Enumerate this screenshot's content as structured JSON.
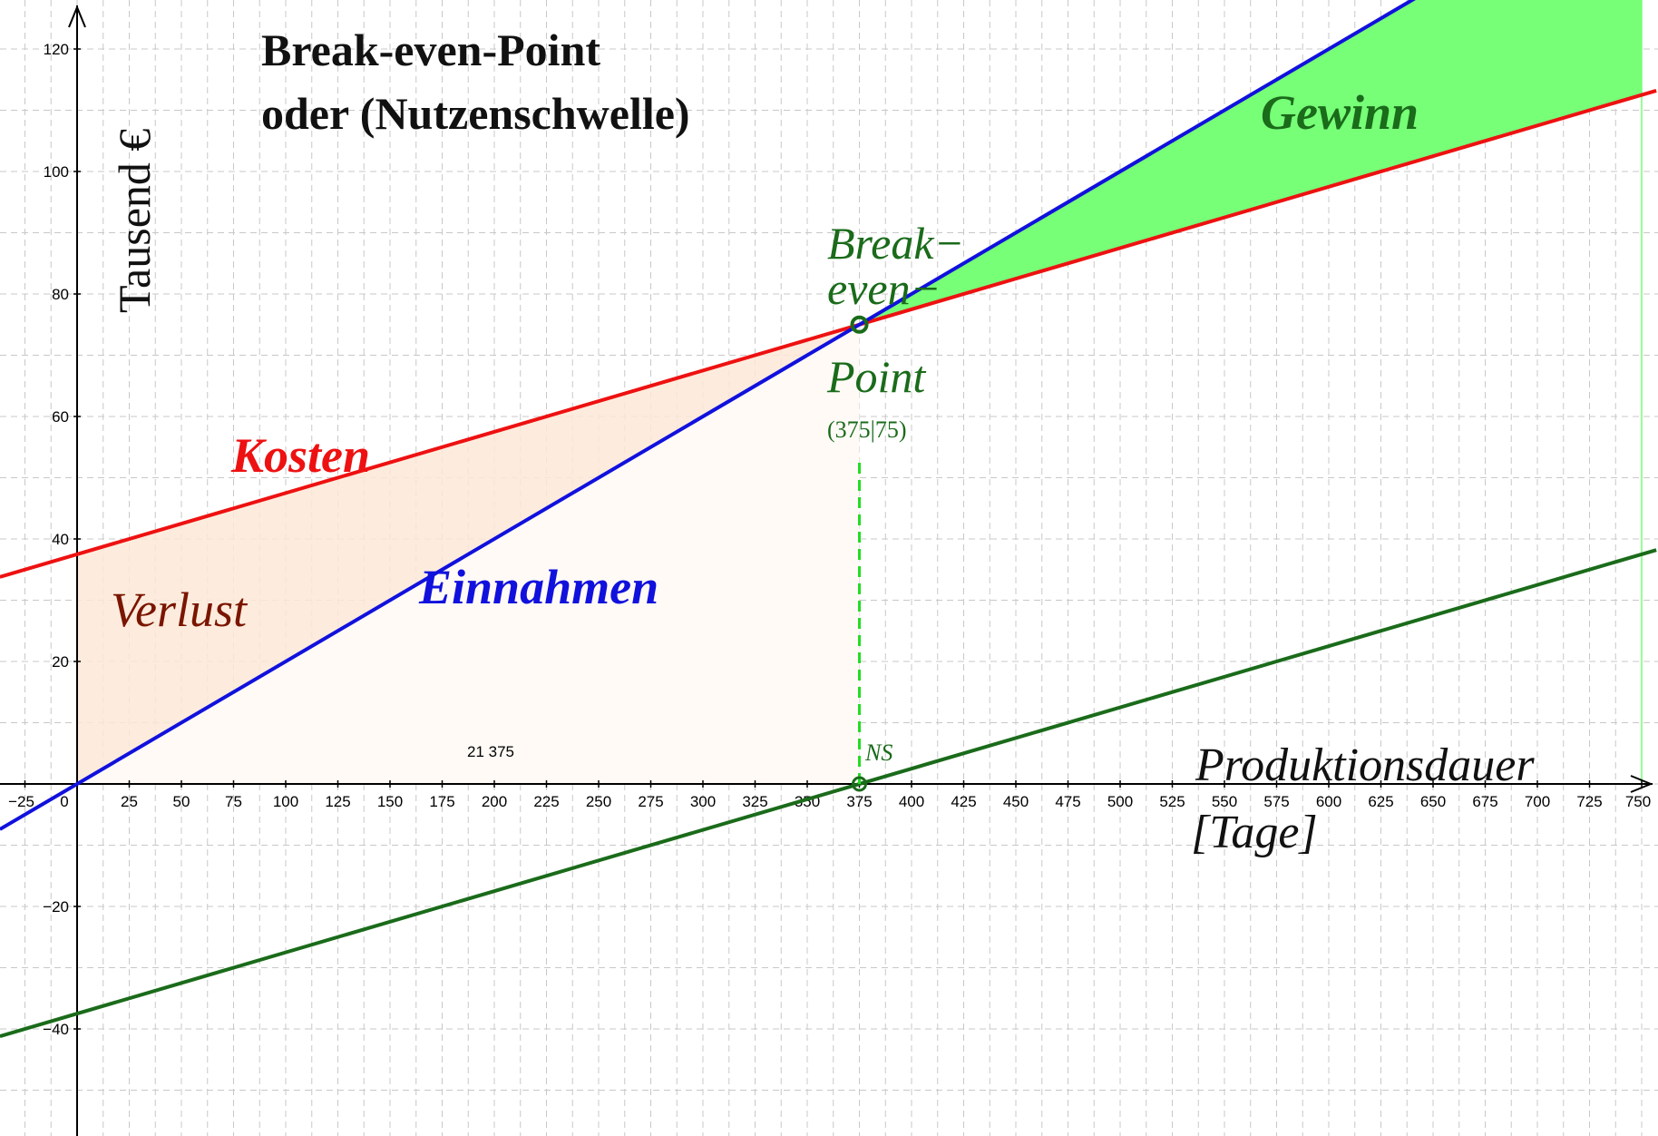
{
  "chart_data": {
    "type": "line",
    "title": "Break-even-Point",
    "subtitle": "oder (Nutzenschwelle)",
    "xlabel": "Produktionsdauer",
    "xlabel_unit": "[Tage]",
    "ylabel": "Tausend €",
    "xlim": [
      -37,
      757
    ],
    "ylim": [
      -57,
      128
    ],
    "grid": true,
    "x_ticks": [
      -25,
      0,
      25,
      50,
      75,
      100,
      125,
      150,
      175,
      200,
      225,
      250,
      275,
      300,
      325,
      350,
      375,
      400,
      425,
      450,
      475,
      500,
      525,
      550,
      575,
      600,
      625,
      650,
      675,
      700,
      725,
      750
    ],
    "x_tick_labels": [
      "−25",
      "0",
      "25",
      "50",
      "75",
      "100",
      "125",
      "150",
      "175",
      "200",
      "225",
      "250",
      "275",
      "300",
      "325",
      "350",
      "375",
      "400",
      "425",
      "450",
      "475",
      "500",
      "525",
      "550",
      "575",
      "600",
      "625",
      "650",
      "675",
      "700",
      "725",
      "750"
    ],
    "y_ticks": [
      -40,
      -20,
      20,
      40,
      60,
      80,
      100,
      120
    ],
    "y_tick_labels": [
      "−40",
      "−20",
      "20",
      "40",
      "60",
      "80",
      "100",
      "120"
    ],
    "series": [
      {
        "name": "Kosten",
        "color": "#ee1111",
        "x": [
          -37,
          757
        ],
        "y": [
          33.8,
          113.2
        ]
      },
      {
        "name": "Einnahmen",
        "color": "#1111dd",
        "x": [
          -37,
          757
        ],
        "y": [
          -7.4,
          151.4
        ]
      },
      {
        "name": "",
        "color": "#1a6b1a",
        "x": [
          -37,
          757
        ],
        "y": [
          -41.2,
          38.2
        ]
      }
    ],
    "regions": [
      {
        "name": "Verlust",
        "color": "#8b1a00",
        "fill": "#fde9d7"
      },
      {
        "name": "Gewinn",
        "color": "#1a6b1a",
        "fill": "#77ff77"
      }
    ],
    "break_even": {
      "label_line1": "Break−",
      "label_line2": "even−",
      "label_line3": "Point",
      "coords": "(375|75)",
      "x": 375,
      "y": 75
    },
    "zero_point": {
      "label": "NS",
      "x": 375,
      "y": 0
    },
    "faint_label": "21  375"
  }
}
